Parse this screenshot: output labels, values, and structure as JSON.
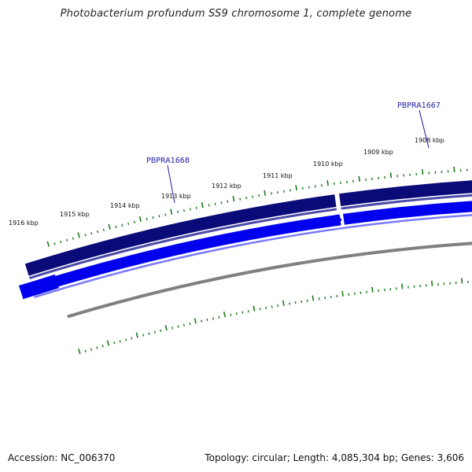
{
  "title": "Photobacterium profundum SS9 chromosome 1, complete genome",
  "footer": {
    "accession": "Accession: NC_006370",
    "summary": "Topology: circular; Length: 4,085,304 bp; Genes: 3,606"
  },
  "ticks": [
    {
      "label": "1908 kbp"
    },
    {
      "label": "1909 kbp"
    },
    {
      "label": "1910 kbp"
    },
    {
      "label": "1911 kbp"
    },
    {
      "label": "1912 kbp"
    },
    {
      "label": "1913 kbp"
    },
    {
      "label": "1914 kbp"
    },
    {
      "label": "1915 kbp"
    },
    {
      "label": "1916 kbp"
    }
  ],
  "genes": [
    {
      "label": "PBPRA1667"
    },
    {
      "label": "PBPRA1668"
    }
  ],
  "colors": {
    "reverse_strand": "#0a0a78",
    "forward_strand": "#0000ee",
    "backbone": "#808080",
    "ticks": "#1a7a1a"
  }
}
